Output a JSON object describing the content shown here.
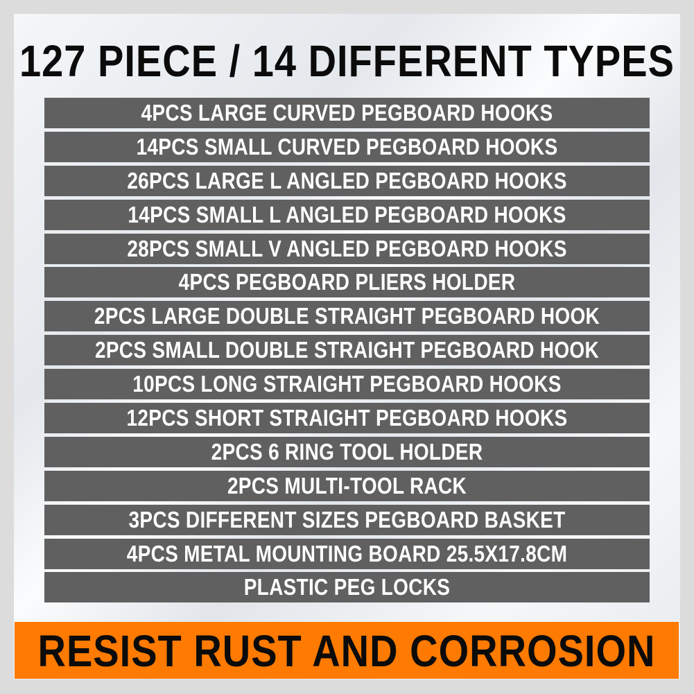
{
  "title": "127 PIECE / 14 DIFFERENT TYPES",
  "items": [
    "4PCS LARGE CURVED PEGBOARD HOOKS",
    "14PCS SMALL CURVED PEGBOARD HOOKS",
    "26PCS LARGE L ANGLED PEGBOARD HOOKS",
    "14PCS SMALL L ANGLED PEGBOARD HOOKS",
    "28PCS SMALL V ANGLED PEGBOARD HOOKS",
    "4PCS PEGBOARD PLIERS HOLDER",
    "2PCS LARGE DOUBLE STRAIGHT PEGBOARD HOOK",
    "2PCS SMALL DOUBLE STRAIGHT PEGBOARD HOOK",
    "10PCS LONG STRAIGHT PEGBOARD HOOKS",
    "12PCS SHORT STRAIGHT PEGBOARD HOOKS",
    "2PCS 6 RING TOOL HOLDER",
    "2PCS MULTI-TOOL RACK",
    "3PCS DIFFERENT SIZES PEGBOARD BASKET",
    "4PCS METAL MOUNTING BOARD 25.5X17.8CM",
    "PLASTIC PEG LOCKS"
  ],
  "banner": "RESIST RUST AND CORROSION",
  "colors": {
    "row_bg": "#606060",
    "banner_bg": "#ff7a00",
    "text_dark": "#0b0b0b"
  }
}
